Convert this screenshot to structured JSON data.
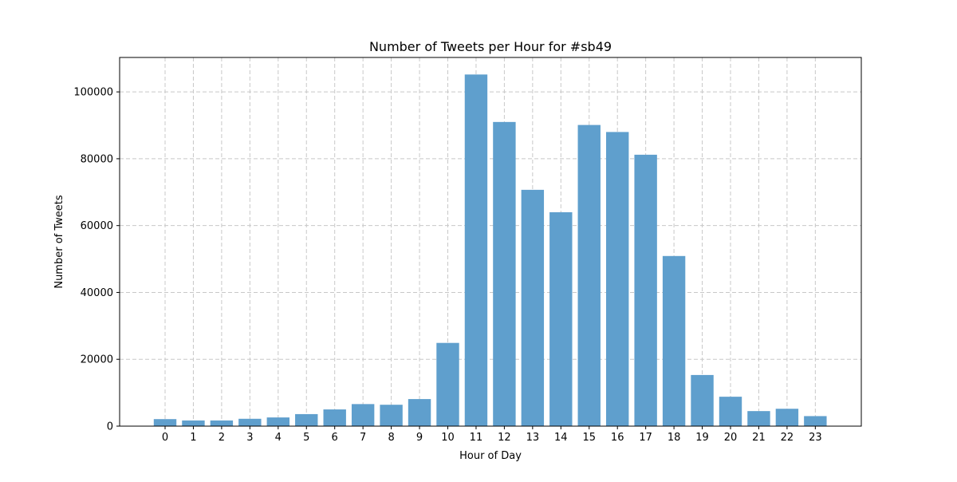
{
  "chart_data": {
    "type": "bar",
    "title": "Number of Tweets per Hour for #sb49",
    "xlabel": "Hour of Day",
    "ylabel": "Number of Tweets",
    "categories": [
      "0",
      "1",
      "2",
      "3",
      "4",
      "5",
      "6",
      "7",
      "8",
      "9",
      "10",
      "11",
      "12",
      "13",
      "14",
      "15",
      "16",
      "17",
      "18",
      "19",
      "20",
      "21",
      "22",
      "23"
    ],
    "values": [
      2100,
      1700,
      1700,
      2200,
      2600,
      3600,
      5000,
      6600,
      6400,
      8100,
      24900,
      105200,
      91000,
      70700,
      64000,
      90100,
      88000,
      81200,
      50900,
      15300,
      8800,
      4500,
      5200,
      3000
    ],
    "ylim": [
      0,
      110300
    ],
    "yticks": [
      0,
      20000,
      40000,
      60000,
      80000,
      100000
    ],
    "ytick_labels": [
      "0",
      "20000",
      "40000",
      "60000",
      "80000",
      "100000"
    ],
    "grid": true,
    "bar_color": "#5f9fcd",
    "grid_color": "#c8c8c8"
  }
}
